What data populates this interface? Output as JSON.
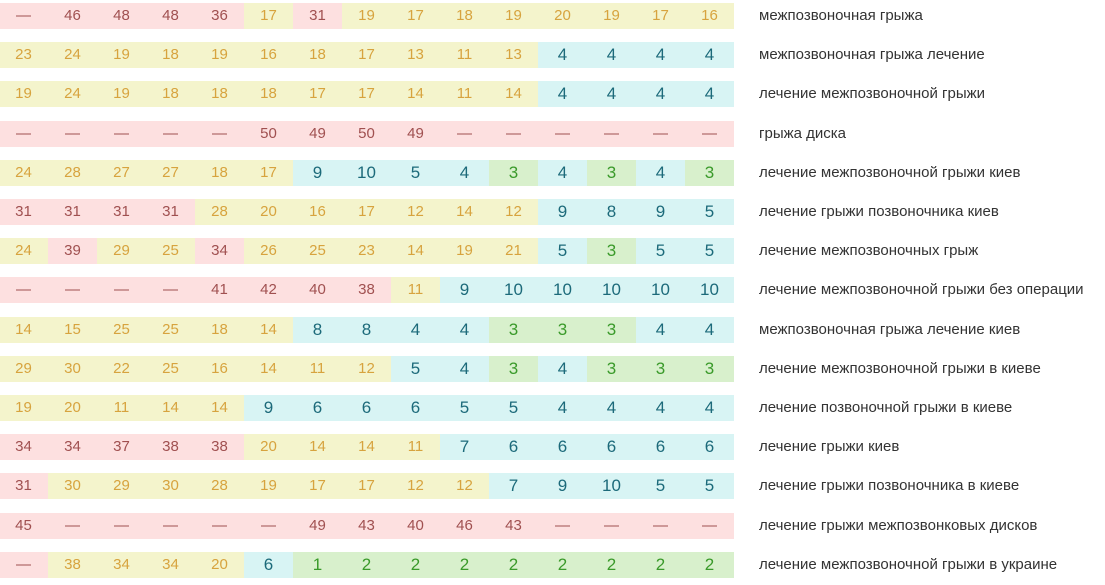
{
  "tier_colors": {
    "red": {
      "bg": "#fde0e0",
      "fg": "#a05050"
    },
    "yellow": {
      "bg": "#f4f4cc",
      "fg": "#d7a33e"
    },
    "cyan": {
      "bg": "#d8f4f4",
      "fg": "#1c6a7a"
    },
    "green": {
      "bg": "#d8f0cc",
      "fg": "#3a9a2a"
    }
  },
  "rows": [
    {
      "keyword": "межпозвоночная грыжа",
      "cells": [
        [
          "—",
          "red"
        ],
        [
          "46",
          "red"
        ],
        [
          "48",
          "red"
        ],
        [
          "48",
          "red"
        ],
        [
          "36",
          "red"
        ],
        [
          "17",
          "yellow"
        ],
        [
          "31",
          "red"
        ],
        [
          "19",
          "yellow"
        ],
        [
          "17",
          "yellow"
        ],
        [
          "18",
          "yellow"
        ],
        [
          "19",
          "yellow"
        ],
        [
          "20",
          "yellow"
        ],
        [
          "19",
          "yellow"
        ],
        [
          "17",
          "yellow"
        ],
        [
          "16",
          "yellow"
        ]
      ]
    },
    {
      "keyword": "межпозвоночная грыжа лечение",
      "cells": [
        [
          "23",
          "yellow"
        ],
        [
          "24",
          "yellow"
        ],
        [
          "19",
          "yellow"
        ],
        [
          "18",
          "yellow"
        ],
        [
          "19",
          "yellow"
        ],
        [
          "16",
          "yellow"
        ],
        [
          "18",
          "yellow"
        ],
        [
          "17",
          "yellow"
        ],
        [
          "13",
          "yellow"
        ],
        [
          "11",
          "yellow"
        ],
        [
          "13",
          "yellow"
        ],
        [
          "4",
          "cyan"
        ],
        [
          "4",
          "cyan"
        ],
        [
          "4",
          "cyan"
        ],
        [
          "4",
          "cyan"
        ]
      ]
    },
    {
      "keyword": "лечение межпозвоночной грыжи",
      "cells": [
        [
          "19",
          "yellow"
        ],
        [
          "24",
          "yellow"
        ],
        [
          "19",
          "yellow"
        ],
        [
          "18",
          "yellow"
        ],
        [
          "18",
          "yellow"
        ],
        [
          "18",
          "yellow"
        ],
        [
          "17",
          "yellow"
        ],
        [
          "17",
          "yellow"
        ],
        [
          "14",
          "yellow"
        ],
        [
          "11",
          "yellow"
        ],
        [
          "14",
          "yellow"
        ],
        [
          "4",
          "cyan"
        ],
        [
          "4",
          "cyan"
        ],
        [
          "4",
          "cyan"
        ],
        [
          "4",
          "cyan"
        ]
      ]
    },
    {
      "keyword": "грыжа диска",
      "cells": [
        [
          "—",
          "red"
        ],
        [
          "—",
          "red"
        ],
        [
          "—",
          "red"
        ],
        [
          "—",
          "red"
        ],
        [
          "—",
          "red"
        ],
        [
          "50",
          "red"
        ],
        [
          "49",
          "red"
        ],
        [
          "50",
          "red"
        ],
        [
          "49",
          "red"
        ],
        [
          "—",
          "red"
        ],
        [
          "—",
          "red"
        ],
        [
          "—",
          "red"
        ],
        [
          "—",
          "red"
        ],
        [
          "—",
          "red"
        ],
        [
          "—",
          "red"
        ]
      ]
    },
    {
      "keyword": "лечение межпозвоночной грыжи киев",
      "cells": [
        [
          "24",
          "yellow"
        ],
        [
          "28",
          "yellow"
        ],
        [
          "27",
          "yellow"
        ],
        [
          "27",
          "yellow"
        ],
        [
          "18",
          "yellow"
        ],
        [
          "17",
          "yellow"
        ],
        [
          "9",
          "cyan"
        ],
        [
          "10",
          "cyan"
        ],
        [
          "5",
          "cyan"
        ],
        [
          "4",
          "cyan"
        ],
        [
          "3",
          "green"
        ],
        [
          "4",
          "cyan"
        ],
        [
          "3",
          "green"
        ],
        [
          "4",
          "cyan"
        ],
        [
          "3",
          "green"
        ]
      ]
    },
    {
      "keyword": "лечение грыжи позвоночника киев",
      "cells": [
        [
          "31",
          "red"
        ],
        [
          "31",
          "red"
        ],
        [
          "31",
          "red"
        ],
        [
          "31",
          "red"
        ],
        [
          "28",
          "yellow"
        ],
        [
          "20",
          "yellow"
        ],
        [
          "16",
          "yellow"
        ],
        [
          "17",
          "yellow"
        ],
        [
          "12",
          "yellow"
        ],
        [
          "14",
          "yellow"
        ],
        [
          "12",
          "yellow"
        ],
        [
          "9",
          "cyan"
        ],
        [
          "8",
          "cyan"
        ],
        [
          "9",
          "cyan"
        ],
        [
          "5",
          "cyan"
        ]
      ]
    },
    {
      "keyword": "лечение межпозвоночных грыж",
      "cells": [
        [
          "24",
          "yellow"
        ],
        [
          "39",
          "red"
        ],
        [
          "29",
          "yellow"
        ],
        [
          "25",
          "yellow"
        ],
        [
          "34",
          "red"
        ],
        [
          "26",
          "yellow"
        ],
        [
          "25",
          "yellow"
        ],
        [
          "23",
          "yellow"
        ],
        [
          "14",
          "yellow"
        ],
        [
          "19",
          "yellow"
        ],
        [
          "21",
          "yellow"
        ],
        [
          "5",
          "cyan"
        ],
        [
          "3",
          "green"
        ],
        [
          "5",
          "cyan"
        ],
        [
          "5",
          "cyan"
        ]
      ]
    },
    {
      "keyword": "лечение межпозвоночной грыжи без операции",
      "cells": [
        [
          "—",
          "red"
        ],
        [
          "—",
          "red"
        ],
        [
          "—",
          "red"
        ],
        [
          "—",
          "red"
        ],
        [
          "41",
          "red"
        ],
        [
          "42",
          "red"
        ],
        [
          "40",
          "red"
        ],
        [
          "38",
          "red"
        ],
        [
          "11",
          "yellow"
        ],
        [
          "9",
          "cyan"
        ],
        [
          "10",
          "cyan"
        ],
        [
          "10",
          "cyan"
        ],
        [
          "10",
          "cyan"
        ],
        [
          "10",
          "cyan"
        ],
        [
          "10",
          "cyan"
        ]
      ]
    },
    {
      "keyword": "межпозвоночная грыжа лечение киев",
      "cells": [
        [
          "14",
          "yellow"
        ],
        [
          "15",
          "yellow"
        ],
        [
          "25",
          "yellow"
        ],
        [
          "25",
          "yellow"
        ],
        [
          "18",
          "yellow"
        ],
        [
          "14",
          "yellow"
        ],
        [
          "8",
          "cyan"
        ],
        [
          "8",
          "cyan"
        ],
        [
          "4",
          "cyan"
        ],
        [
          "4",
          "cyan"
        ],
        [
          "3",
          "green"
        ],
        [
          "3",
          "green"
        ],
        [
          "3",
          "green"
        ],
        [
          "4",
          "cyan"
        ],
        [
          "4",
          "cyan"
        ]
      ]
    },
    {
      "keyword": "лечение межпозвоночной грыжи в киеве",
      "cells": [
        [
          "29",
          "yellow"
        ],
        [
          "30",
          "yellow"
        ],
        [
          "22",
          "yellow"
        ],
        [
          "25",
          "yellow"
        ],
        [
          "16",
          "yellow"
        ],
        [
          "14",
          "yellow"
        ],
        [
          "11",
          "yellow"
        ],
        [
          "12",
          "yellow"
        ],
        [
          "5",
          "cyan"
        ],
        [
          "4",
          "cyan"
        ],
        [
          "3",
          "green"
        ],
        [
          "4",
          "cyan"
        ],
        [
          "3",
          "green"
        ],
        [
          "3",
          "green"
        ],
        [
          "3",
          "green"
        ]
      ]
    },
    {
      "keyword": "лечение позвоночной грыжи в киеве",
      "cells": [
        [
          "19",
          "yellow"
        ],
        [
          "20",
          "yellow"
        ],
        [
          "11",
          "yellow"
        ],
        [
          "14",
          "yellow"
        ],
        [
          "14",
          "yellow"
        ],
        [
          "9",
          "cyan"
        ],
        [
          "6",
          "cyan"
        ],
        [
          "6",
          "cyan"
        ],
        [
          "6",
          "cyan"
        ],
        [
          "5",
          "cyan"
        ],
        [
          "5",
          "cyan"
        ],
        [
          "4",
          "cyan"
        ],
        [
          "4",
          "cyan"
        ],
        [
          "4",
          "cyan"
        ],
        [
          "4",
          "cyan"
        ]
      ]
    },
    {
      "keyword": "лечение грыжи киев",
      "cells": [
        [
          "34",
          "red"
        ],
        [
          "34",
          "red"
        ],
        [
          "37",
          "red"
        ],
        [
          "38",
          "red"
        ],
        [
          "38",
          "red"
        ],
        [
          "20",
          "yellow"
        ],
        [
          "14",
          "yellow"
        ],
        [
          "14",
          "yellow"
        ],
        [
          "11",
          "yellow"
        ],
        [
          "7",
          "cyan"
        ],
        [
          "6",
          "cyan"
        ],
        [
          "6",
          "cyan"
        ],
        [
          "6",
          "cyan"
        ],
        [
          "6",
          "cyan"
        ],
        [
          "6",
          "cyan"
        ]
      ]
    },
    {
      "keyword": "лечение грыжи позвоночника в киеве",
      "cells": [
        [
          "31",
          "red"
        ],
        [
          "30",
          "yellow"
        ],
        [
          "29",
          "yellow"
        ],
        [
          "30",
          "yellow"
        ],
        [
          "28",
          "yellow"
        ],
        [
          "19",
          "yellow"
        ],
        [
          "17",
          "yellow"
        ],
        [
          "17",
          "yellow"
        ],
        [
          "12",
          "yellow"
        ],
        [
          "12",
          "yellow"
        ],
        [
          "7",
          "cyan"
        ],
        [
          "9",
          "cyan"
        ],
        [
          "10",
          "cyan"
        ],
        [
          "5",
          "cyan"
        ],
        [
          "5",
          "cyan"
        ]
      ]
    },
    {
      "keyword": "лечение грыжи межпозвонковых дисков",
      "cells": [
        [
          "45",
          "red"
        ],
        [
          "—",
          "red"
        ],
        [
          "—",
          "red"
        ],
        [
          "—",
          "red"
        ],
        [
          "—",
          "red"
        ],
        [
          "—",
          "red"
        ],
        [
          "49",
          "red"
        ],
        [
          "43",
          "red"
        ],
        [
          "40",
          "red"
        ],
        [
          "46",
          "red"
        ],
        [
          "43",
          "red"
        ],
        [
          "—",
          "red"
        ],
        [
          "—",
          "red"
        ],
        [
          "—",
          "red"
        ],
        [
          "—",
          "red"
        ]
      ]
    },
    {
      "keyword": "лечение межпозвоночной грыжи в украине",
      "cells": [
        [
          "—",
          "red"
        ],
        [
          "38",
          "yellow"
        ],
        [
          "34",
          "yellow"
        ],
        [
          "34",
          "yellow"
        ],
        [
          "20",
          "yellow"
        ],
        [
          "6",
          "cyan"
        ],
        [
          "1",
          "green"
        ],
        [
          "2",
          "green"
        ],
        [
          "2",
          "green"
        ],
        [
          "2",
          "green"
        ],
        [
          "2",
          "green"
        ],
        [
          "2",
          "green"
        ],
        [
          "2",
          "green"
        ],
        [
          "2",
          "green"
        ],
        [
          "2",
          "green"
        ]
      ]
    }
  ]
}
